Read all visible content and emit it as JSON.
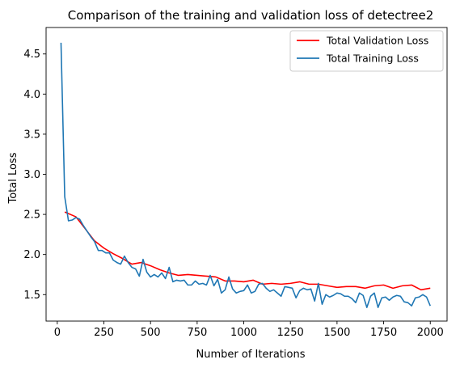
{
  "chart_data": {
    "type": "line",
    "title": "Comparison of the training and validation loss of detectree2",
    "xlabel": "Number of Iterations",
    "ylabel": "Total Loss",
    "xlim": [
      -60,
      2090
    ],
    "ylim": [
      1.17,
      4.83
    ],
    "xticks": [
      0,
      250,
      500,
      750,
      1000,
      1250,
      1500,
      1750,
      2000
    ],
    "yticks": [
      1.5,
      2.0,
      2.5,
      3.0,
      3.5,
      4.0,
      4.5
    ],
    "ytick_labels": [
      "1.5",
      "2.0",
      "2.5",
      "3.0",
      "3.5",
      "4.0",
      "4.5"
    ],
    "grid": false,
    "legend": "upper right",
    "series": [
      {
        "name": "Total Validation Loss",
        "color": "#ff0000",
        "x": [
          40,
          100,
          150,
          200,
          250,
          300,
          350,
          400,
          450,
          500,
          550,
          600,
          650,
          700,
          750,
          800,
          850,
          900,
          950,
          1000,
          1050,
          1100,
          1150,
          1200,
          1250,
          1300,
          1350,
          1400,
          1450,
          1500,
          1550,
          1600,
          1650,
          1700,
          1750,
          1800,
          1850,
          1900,
          1950,
          2000
        ],
        "y": [
          2.53,
          2.47,
          2.32,
          2.17,
          2.08,
          2.01,
          1.95,
          1.88,
          1.9,
          1.86,
          1.81,
          1.77,
          1.74,
          1.75,
          1.74,
          1.73,
          1.72,
          1.67,
          1.67,
          1.66,
          1.68,
          1.63,
          1.64,
          1.63,
          1.64,
          1.66,
          1.63,
          1.63,
          1.61,
          1.59,
          1.6,
          1.6,
          1.58,
          1.61,
          1.62,
          1.58,
          1.61,
          1.62,
          1.56,
          1.58
        ]
      },
      {
        "name": "Total Training Loss",
        "color": "#1f77b4",
        "x": [
          20,
          40,
          60,
          80,
          100,
          120,
          140,
          160,
          180,
          200,
          220,
          240,
          260,
          280,
          300,
          320,
          340,
          360,
          380,
          400,
          420,
          440,
          460,
          480,
          500,
          520,
          540,
          560,
          580,
          600,
          620,
          640,
          660,
          680,
          700,
          720,
          740,
          760,
          780,
          800,
          820,
          840,
          860,
          880,
          900,
          920,
          940,
          960,
          980,
          1000,
          1020,
          1040,
          1060,
          1080,
          1100,
          1120,
          1140,
          1160,
          1180,
          1200,
          1220,
          1240,
          1260,
          1280,
          1300,
          1320,
          1340,
          1360,
          1380,
          1400,
          1420,
          1440,
          1460,
          1480,
          1500,
          1520,
          1540,
          1560,
          1580,
          1600,
          1620,
          1640,
          1660,
          1680,
          1700,
          1720,
          1740,
          1760,
          1780,
          1800,
          1820,
          1840,
          1860,
          1880,
          1900,
          1920,
          1940,
          1960,
          1980,
          2000
        ],
        "y": [
          4.64,
          2.72,
          2.42,
          2.43,
          2.46,
          2.44,
          2.36,
          2.29,
          2.22,
          2.16,
          2.05,
          2.05,
          2.02,
          2.02,
          1.93,
          1.9,
          1.88,
          1.98,
          1.9,
          1.84,
          1.82,
          1.73,
          1.94,
          1.78,
          1.72,
          1.75,
          1.72,
          1.77,
          1.7,
          1.84,
          1.66,
          1.68,
          1.67,
          1.68,
          1.62,
          1.62,
          1.67,
          1.63,
          1.64,
          1.62,
          1.74,
          1.61,
          1.69,
          1.52,
          1.56,
          1.72,
          1.57,
          1.52,
          1.54,
          1.55,
          1.62,
          1.52,
          1.54,
          1.63,
          1.64,
          1.58,
          1.54,
          1.56,
          1.52,
          1.48,
          1.6,
          1.59,
          1.58,
          1.46,
          1.55,
          1.58,
          1.56,
          1.57,
          1.42,
          1.64,
          1.38,
          1.5,
          1.47,
          1.49,
          1.52,
          1.51,
          1.48,
          1.48,
          1.45,
          1.4,
          1.52,
          1.49,
          1.34,
          1.48,
          1.52,
          1.34,
          1.46,
          1.47,
          1.43,
          1.47,
          1.49,
          1.48,
          1.41,
          1.4,
          1.36,
          1.46,
          1.47,
          1.5,
          1.47,
          1.36
        ]
      }
    ]
  }
}
